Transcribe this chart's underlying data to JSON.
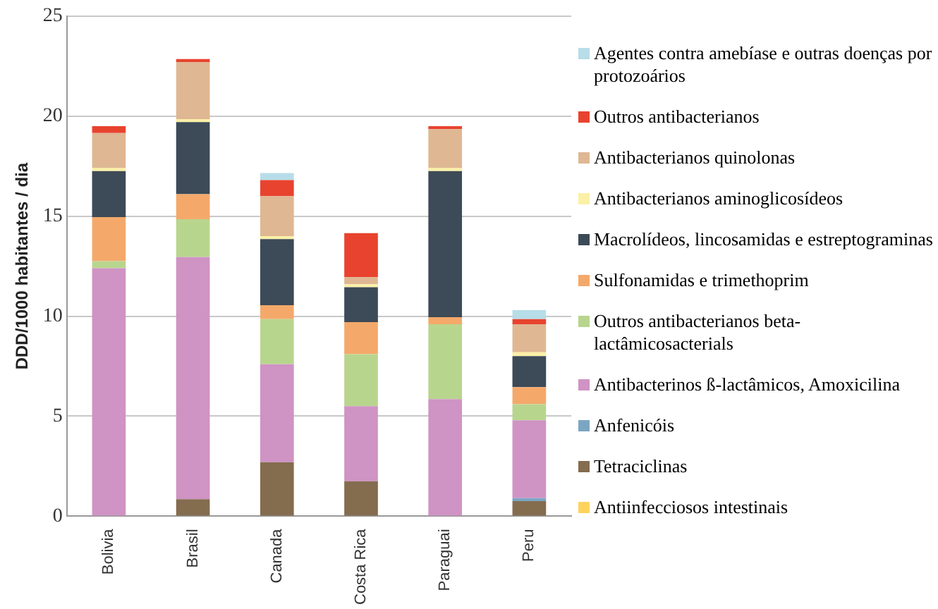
{
  "chart_data": {
    "type": "bar",
    "stacked": true,
    "ylabel": "DDD/1000 habitantes / dia",
    "categories": [
      "Bolivia",
      "Brasil",
      "Canada",
      "Costa Rica",
      "Paraguai",
      "Peru"
    ],
    "ylim": [
      0,
      25
    ],
    "yticks": [
      0,
      5,
      10,
      15,
      20,
      25
    ],
    "grid": "y",
    "legend": "right",
    "series": [
      {
        "name": "Antiinfecciosos intestinais",
        "color": "#fdd35d",
        "values": [
          0,
          0,
          0,
          0,
          0,
          0
        ]
      },
      {
        "name": "Tetraciclinas",
        "color": "#846c4f",
        "values": [
          0,
          0.85,
          2.7,
          1.75,
          0,
          0.75
        ]
      },
      {
        "name": "Anfenicóis",
        "color": "#7ba6c2",
        "values": [
          0,
          0,
          0,
          0,
          0,
          0.15
        ]
      },
      {
        "name": "Antibacterinos ß-lactâmicos, Amoxicilina",
        "color": "#cf93c4",
        "values": [
          12.4,
          12.1,
          4.9,
          3.75,
          5.85,
          3.9
        ]
      },
      {
        "name": "Outros antibacterianos beta-lactâmicosacterials",
        "color": "#b8d58e",
        "values": [
          0.35,
          1.9,
          2.25,
          2.6,
          3.75,
          0.8
        ]
      },
      {
        "name": "Sulfonamidas e trimethoprim",
        "color": "#f4a96a",
        "values": [
          2.2,
          1.25,
          0.7,
          1.6,
          0.35,
          0.85
        ]
      },
      {
        "name": "Macrolídeos, lincosamidas e estreptograminas",
        "color": "#3d4a57",
        "values": [
          2.3,
          3.6,
          3.3,
          1.75,
          7.3,
          1.55
        ]
      },
      {
        "name": "Antibacterianos aminoglicosídeos",
        "color": "#fbf0a6",
        "values": [
          0.15,
          0.15,
          0.15,
          0.15,
          0.15,
          0.2
        ]
      },
      {
        "name": "Antibacterianos quinolonas",
        "color": "#dfb793",
        "values": [
          1.75,
          2.85,
          2.0,
          0.35,
          1.95,
          1.4
        ]
      },
      {
        "name": "Outros antibacterianos",
        "color": "#e8432f",
        "values": [
          0.35,
          0.15,
          0.8,
          2.2,
          0.15,
          0.25
        ]
      },
      {
        "name": "Agentes contra amebíase e outras doenças por protozoários",
        "color": "#b7dde8",
        "values": [
          0,
          0,
          0.35,
          0,
          0,
          0.45
        ]
      }
    ]
  }
}
